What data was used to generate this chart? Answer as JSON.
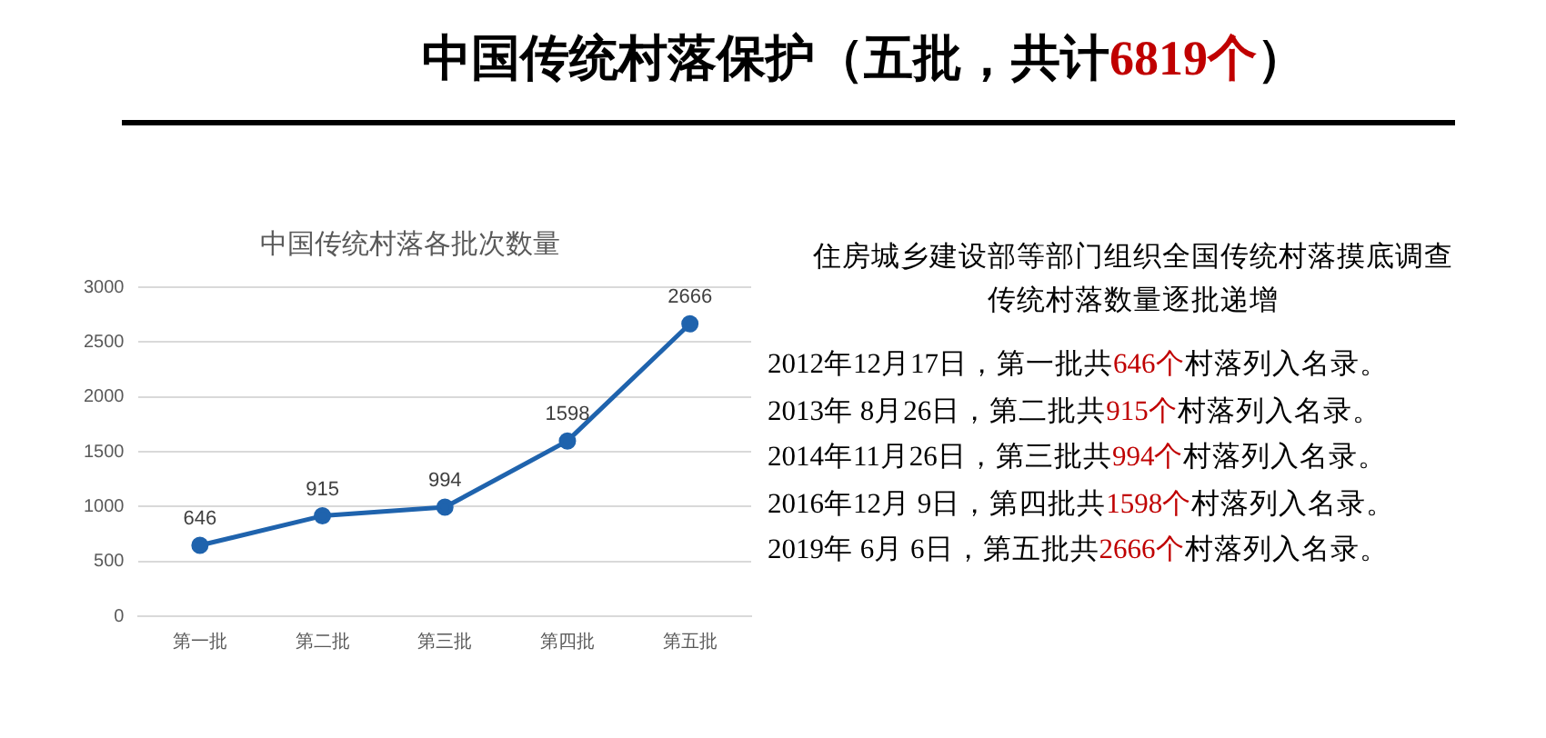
{
  "chart_data": {
    "type": "line",
    "title": "中国传统村落保护（五批，共计6819个）",
    "subtitle": "中国传统村落各批次数量",
    "categories": [
      "第一批",
      "第二批",
      "第三批",
      "第四批",
      "第五批"
    ],
    "series": [
      {
        "color": "#1f63ad",
        "values": [
          646,
          915,
          994,
          1598,
          2666
        ]
      }
    ],
    "ylim": [
      0,
      3000
    ],
    "yticks": [
      0,
      500,
      1000,
      1500,
      2000,
      2500,
      3000
    ],
    "grid": "y",
    "legend": false,
    "marker": "circle",
    "line_style": "solid",
    "data_labels": true,
    "annotations": [
      "住房城乡建设部等部门组织全国传统村落摸底调查",
      "传统村落数量逐批递增",
      "2012年12月17日，第一批共646个村落列入名录。",
      "2013年 8月26日，第二批共915个村落列入名录。",
      "2014年11月26日，第三批共994个村落列入名录。",
      "2016年12月 9日，第四批共1598个村落列入名录。",
      "2019年 6月 6日，第五批共2666个村落列入名录。"
    ]
  }
}
